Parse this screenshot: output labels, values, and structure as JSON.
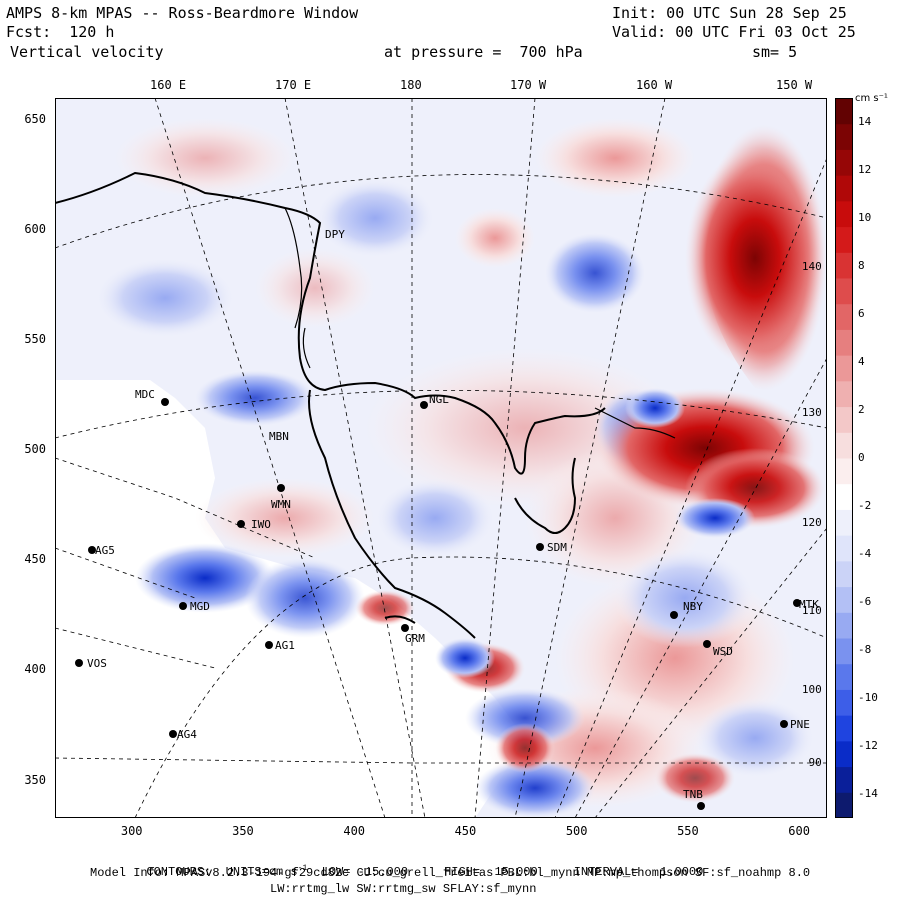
{
  "header": {
    "title": "AMPS 8-km MPAS -- Ross-Beardmore Window",
    "init": "Init: 00 UTC Sun 28 Sep 25",
    "fcst": "Fcst:  120 h",
    "valid": "Valid: 00 UTC Fri 03 Oct 25",
    "field": "Vertical velocity",
    "level": "at pressure =  700 hPa",
    "smoothing": "sm= 5"
  },
  "lon_labels": [
    "160 E",
    "170 E",
    "180",
    "170 W",
    "160 W",
    "150 W"
  ],
  "inner_lon_labels": [
    "140 W",
    "130 W",
    "120 W",
    "110 W",
    "100 W",
    "90 W"
  ],
  "x_axis": {
    "ticks": [
      300,
      350,
      400,
      450,
      500,
      550,
      600
    ],
    "range": [
      265,
      612
    ]
  },
  "y_axis": {
    "ticks": [
      350,
      400,
      450,
      500,
      550,
      600,
      650
    ],
    "range": [
      333,
      660
    ]
  },
  "colorbar": {
    "unit": "cm s⁻¹",
    "labels": [
      "14",
      "12",
      "10",
      "8",
      "6",
      "4",
      "2",
      "0",
      "-2",
      "-4",
      "-6",
      "-8",
      "-10",
      "-12",
      "-14"
    ],
    "min": -15,
    "max": 15,
    "colors": [
      "#0d1a6e",
      "#0a1f9a",
      "#0a2cc8",
      "#1f44e0",
      "#3d5ee8",
      "#5a78ec",
      "#7a92ef",
      "#98aaf2",
      "#b3c0f5",
      "#cbd3f7",
      "#dfe4fa",
      "#eef0fb",
      "#ffffff",
      "#fbeeee",
      "#f7dede",
      "#f3c8c8",
      "#efb0b0",
      "#eb9898",
      "#e67f7f",
      "#e26666",
      "#de4c4c",
      "#d93333",
      "#d41a1a",
      "#c80c0c",
      "#b00808",
      "#960606",
      "#7c0404",
      "#620202"
    ]
  },
  "stations": [
    {
      "code": "MDC",
      "lon": "x",
      "x": 165,
      "y": 400
    },
    {
      "code": "NGL"
    },
    {
      "code": "SDM"
    },
    {
      "code": "AG5"
    },
    {
      "code": "IWO"
    },
    {
      "code": "MGD"
    },
    {
      "code": "AG1"
    },
    {
      "code": "VOS"
    },
    {
      "code": "AG4"
    },
    {
      "code": "GRM"
    },
    {
      "code": "NBY"
    },
    {
      "code": "WSD"
    },
    {
      "code": "MTK"
    },
    {
      "code": "PNE"
    },
    {
      "code": "MBN"
    },
    {
      "code": "WMN"
    },
    {
      "code": "DPY"
    },
    {
      "code": "TNB"
    }
  ],
  "footer": {
    "contours_prefix": "CONTOURS:  UNITS=cm s",
    "contours_rest": "  LOW= -15.000     HIGH=  15.000     INTERVAL=   1.0000",
    "model_info": "Model Info: MPASv8.2.3-194-gf29cd82c CU:cu_grell_freitas PBL:bl_mynn MP:mp_thompson SF:sf_noahmp 8.0",
    "model_info2": "LW:rrtmg_lw SW:rrtmg_sw SFLAY:sf_mynn"
  }
}
